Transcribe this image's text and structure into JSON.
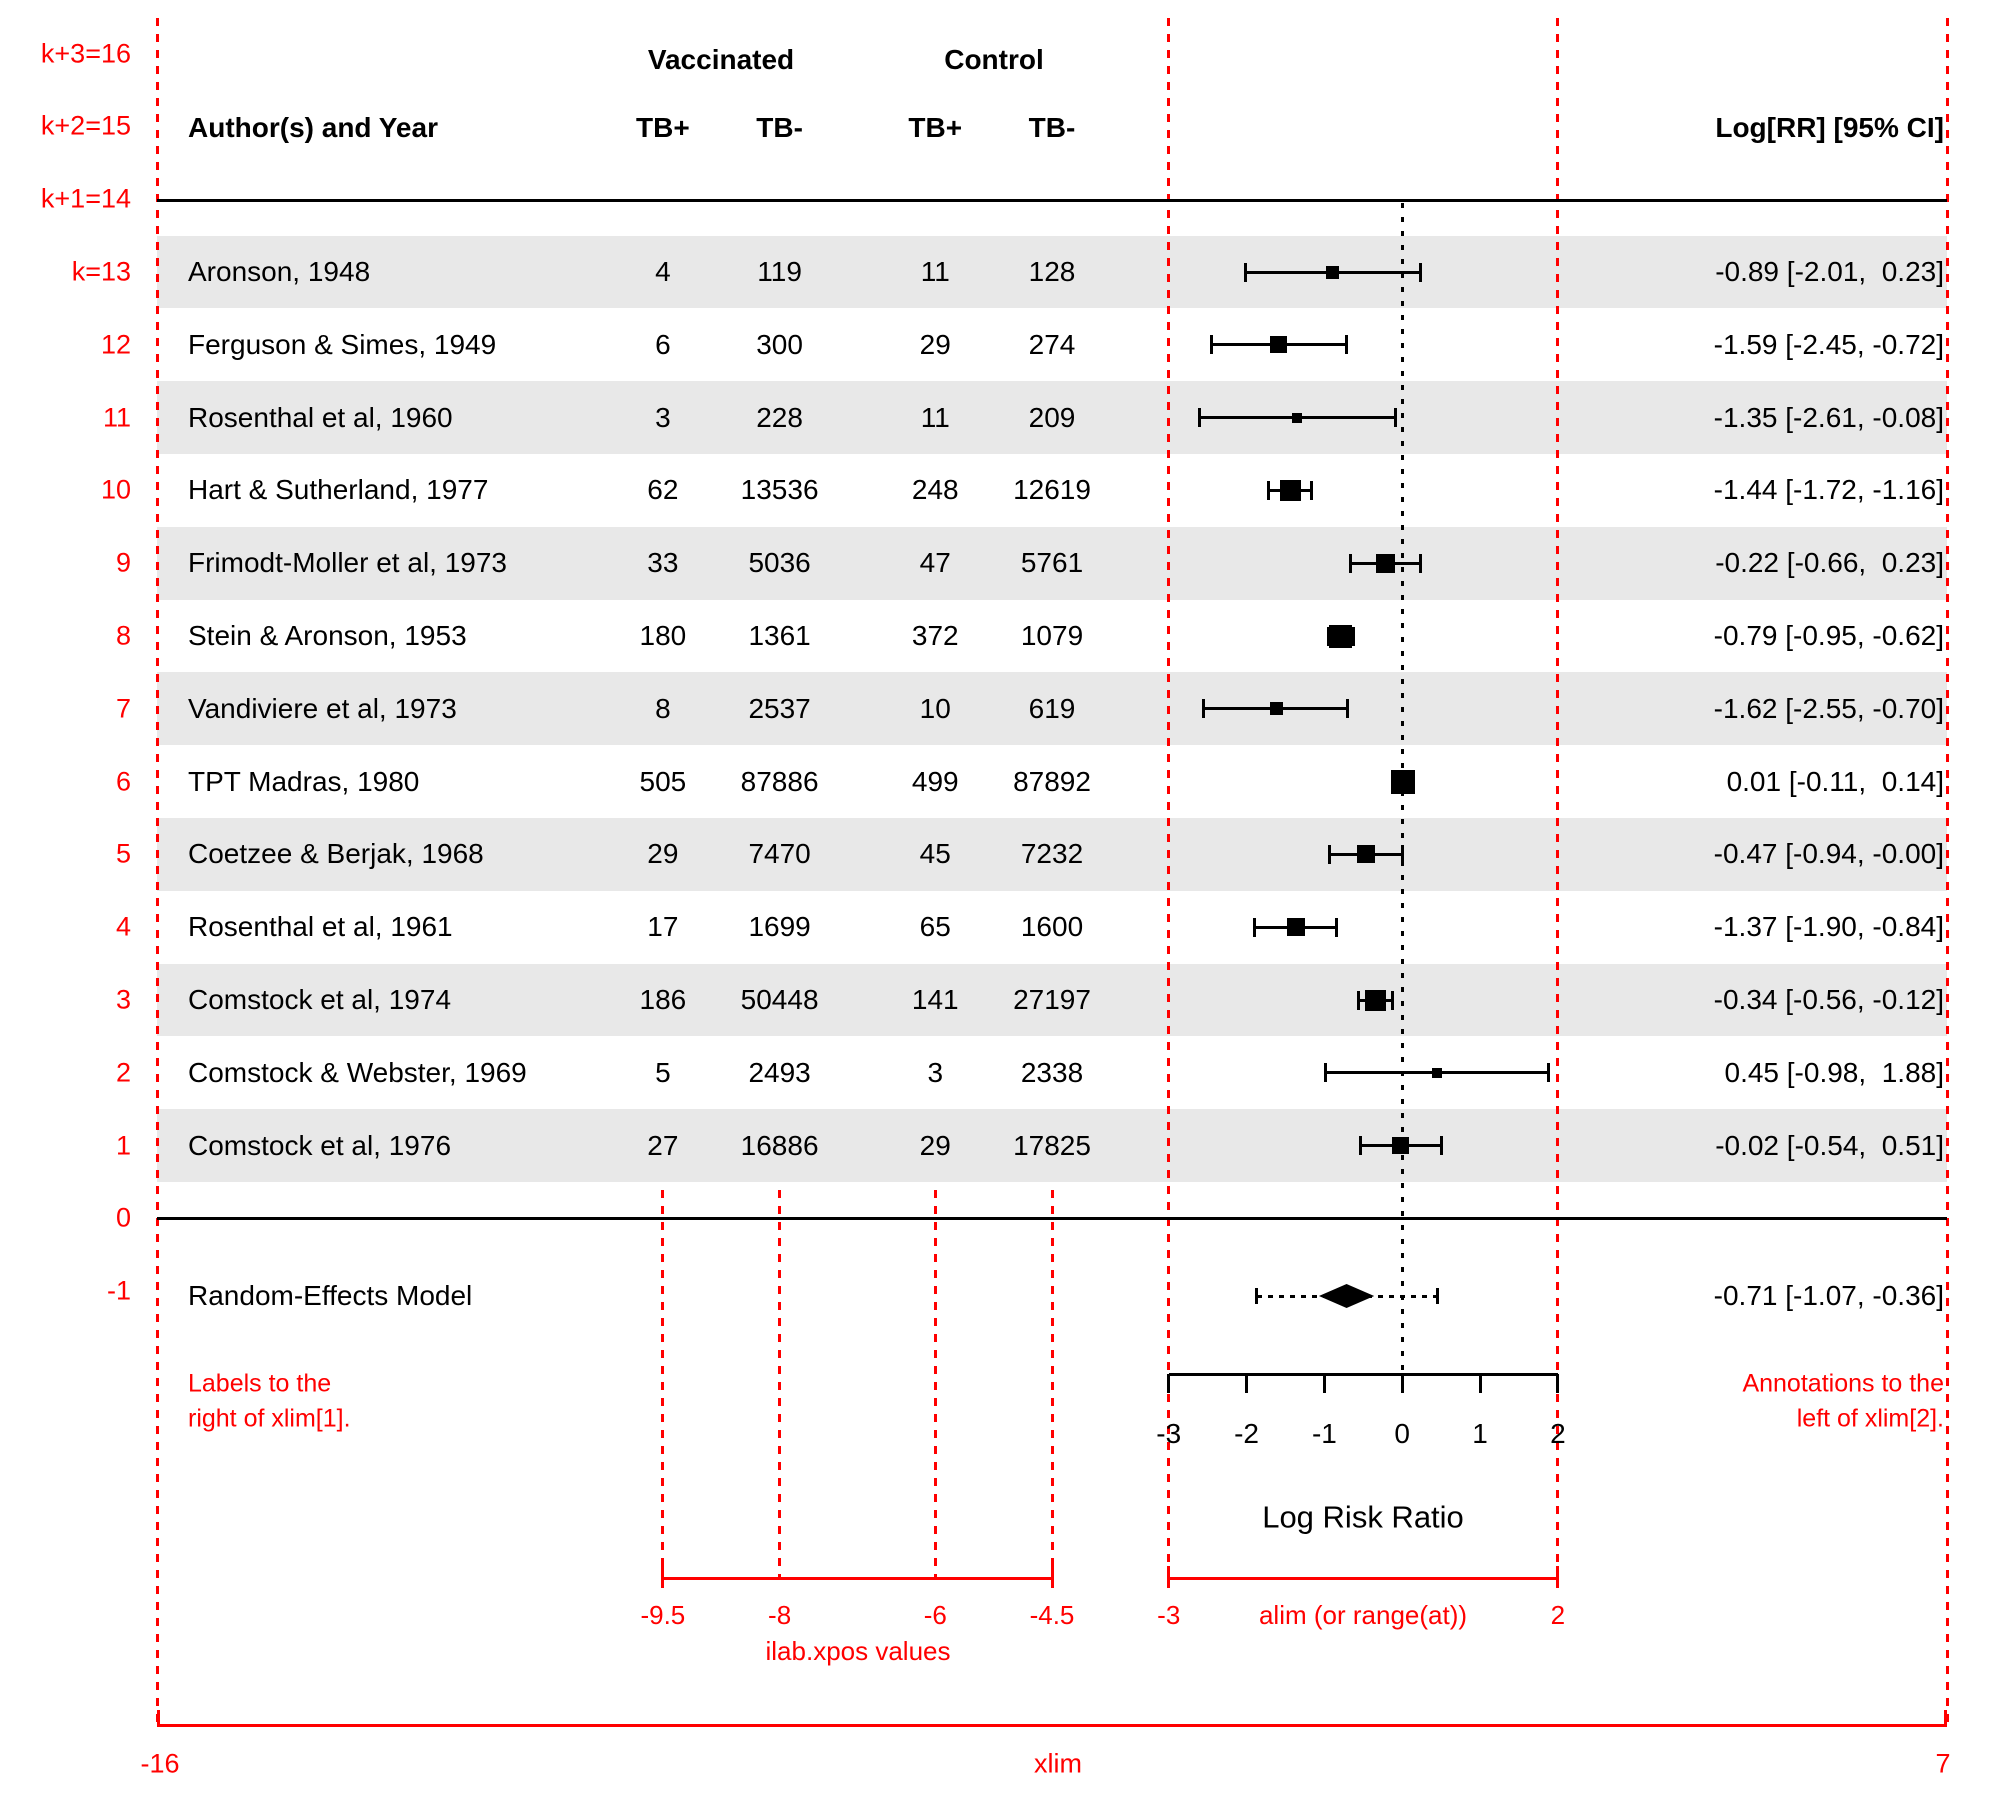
{
  "header": {
    "group1": "Vaccinated",
    "group2": "Control",
    "author_col": "Author(s) and Year",
    "col_labels": [
      "TB+",
      "TB-",
      "TB+",
      "TB-"
    ],
    "annotation_col": "Log[RR] [95% CI]"
  },
  "left_axis_labels": [
    "k+3=16",
    "k+2=15",
    "k+1=14",
    "k=13",
    "12",
    "11",
    "10",
    "9",
    "8",
    "7",
    "6",
    "5",
    "4",
    "3",
    "2",
    "1",
    "0",
    "-1"
  ],
  "chart_data": {
    "type": "forest",
    "xlabel": "Log Risk Ratio",
    "xlim": [
      -16,
      7
    ],
    "alim": [
      -3,
      2
    ],
    "at": [
      -3,
      -2,
      -1,
      0,
      1,
      2
    ],
    "at_labels": [
      "-3",
      "-2",
      "-1",
      "0",
      "1",
      "2"
    ],
    "ilab_xpos": [
      -9.5,
      -8,
      -6,
      -4.5
    ],
    "studies": [
      {
        "label": "Aronson, 1948",
        "counts": [
          "4",
          "119",
          "11",
          "128"
        ],
        "est": -0.89,
        "ci": [
          -2.01,
          0.23
        ],
        "annotation": "-0.89 [-2.01,  0.23]",
        "psize": 13
      },
      {
        "label": "Ferguson & Simes, 1949",
        "counts": [
          "6",
          "300",
          "29",
          "274"
        ],
        "est": -1.59,
        "ci": [
          -2.45,
          -0.72
        ],
        "annotation": "-1.59 [-2.45, -0.72]",
        "psize": 17
      },
      {
        "label": "Rosenthal et al, 1960",
        "counts": [
          "3",
          "228",
          "11",
          "209"
        ],
        "est": -1.35,
        "ci": [
          -2.61,
          -0.08
        ],
        "annotation": "-1.35 [-2.61, -0.08]",
        "psize": 10
      },
      {
        "label": "Hart & Sutherland, 1977",
        "counts": [
          "62",
          "13536",
          "248",
          "12619"
        ],
        "est": -1.44,
        "ci": [
          -1.72,
          -1.16
        ],
        "annotation": "-1.44 [-1.72, -1.16]",
        "psize": 21
      },
      {
        "label": "Frimodt-Moller et al, 1973",
        "counts": [
          "33",
          "5036",
          "47",
          "5761"
        ],
        "est": -0.22,
        "ci": [
          -0.66,
          0.23
        ],
        "annotation": "-0.22 [-0.66,  0.23]",
        "psize": 19
      },
      {
        "label": "Stein & Aronson, 1953",
        "counts": [
          "180",
          "1361",
          "372",
          "1079"
        ],
        "est": -0.79,
        "ci": [
          -0.95,
          -0.62
        ],
        "annotation": "-0.79 [-0.95, -0.62]",
        "psize": 23
      },
      {
        "label": "Vandiviere et al, 1973",
        "counts": [
          "8",
          "2537",
          "10",
          "619"
        ],
        "est": -1.62,
        "ci": [
          -2.55,
          -0.7
        ],
        "annotation": "-1.62 [-2.55, -0.70]",
        "psize": 13
      },
      {
        "label": "TPT Madras, 1980",
        "counts": [
          "505",
          "87886",
          "499",
          "87892"
        ],
        "est": 0.01,
        "ci": [
          -0.11,
          0.14
        ],
        "annotation": "0.01 [-0.11,  0.14]",
        "psize": 24
      },
      {
        "label": "Coetzee & Berjak, 1968",
        "counts": [
          "29",
          "7470",
          "45",
          "7232"
        ],
        "est": -0.47,
        "ci": [
          -0.94,
          -0.0
        ],
        "annotation": "-0.47 [-0.94, -0.00]",
        "psize": 18
      },
      {
        "label": "Rosenthal et al, 1961",
        "counts": [
          "17",
          "1699",
          "65",
          "1600"
        ],
        "est": -1.37,
        "ci": [
          -1.9,
          -0.84
        ],
        "annotation": "-1.37 [-1.90, -0.84]",
        "psize": 18
      },
      {
        "label": "Comstock et al, 1974",
        "counts": [
          "186",
          "50448",
          "141",
          "27197"
        ],
        "est": -0.34,
        "ci": [
          -0.56,
          -0.12
        ],
        "annotation": "-0.34 [-0.56, -0.12]",
        "psize": 21
      },
      {
        "label": "Comstock & Webster, 1969",
        "counts": [
          "5",
          "2493",
          "3",
          "2338"
        ],
        "est": 0.45,
        "ci": [
          -0.98,
          1.88
        ],
        "annotation": "0.45 [-0.98,  1.88]",
        "psize": 10
      },
      {
        "label": "Comstock et al, 1976",
        "counts": [
          "27",
          "16886",
          "29",
          "17825"
        ],
        "est": -0.02,
        "ci": [
          -0.54,
          0.51
        ],
        "annotation": "-0.02 [-0.54,  0.51]",
        "psize": 17
      }
    ],
    "summary": {
      "label": "Random-Effects Model",
      "est": -0.71,
      "ci": [
        -1.07,
        -0.36
      ],
      "pi": [
        -1.87,
        0.45
      ],
      "annotation": "-0.71 [-1.07, -0.36]"
    }
  },
  "red_guides": {
    "note_left_line1": "Labels to the",
    "note_left_line2": "right of xlim[1].",
    "note_right_line1": "Annotations to the",
    "note_right_line2": "left of xlim[2].",
    "ilab_caption": "ilab.xpos values",
    "ilab_tick_labels": [
      "-9.5",
      "-8",
      "-6",
      "-4.5"
    ],
    "alim_caption": "alim (or range(at))",
    "alim_tick_labels": [
      "-3",
      "2"
    ],
    "xlim_caption": "xlim",
    "xlim_tick_labels": [
      "-16",
      "7"
    ]
  },
  "colors": {
    "guide_red": "#ff0000",
    "band_gray": "#e8e8e8",
    "marker_black": "#000000"
  }
}
